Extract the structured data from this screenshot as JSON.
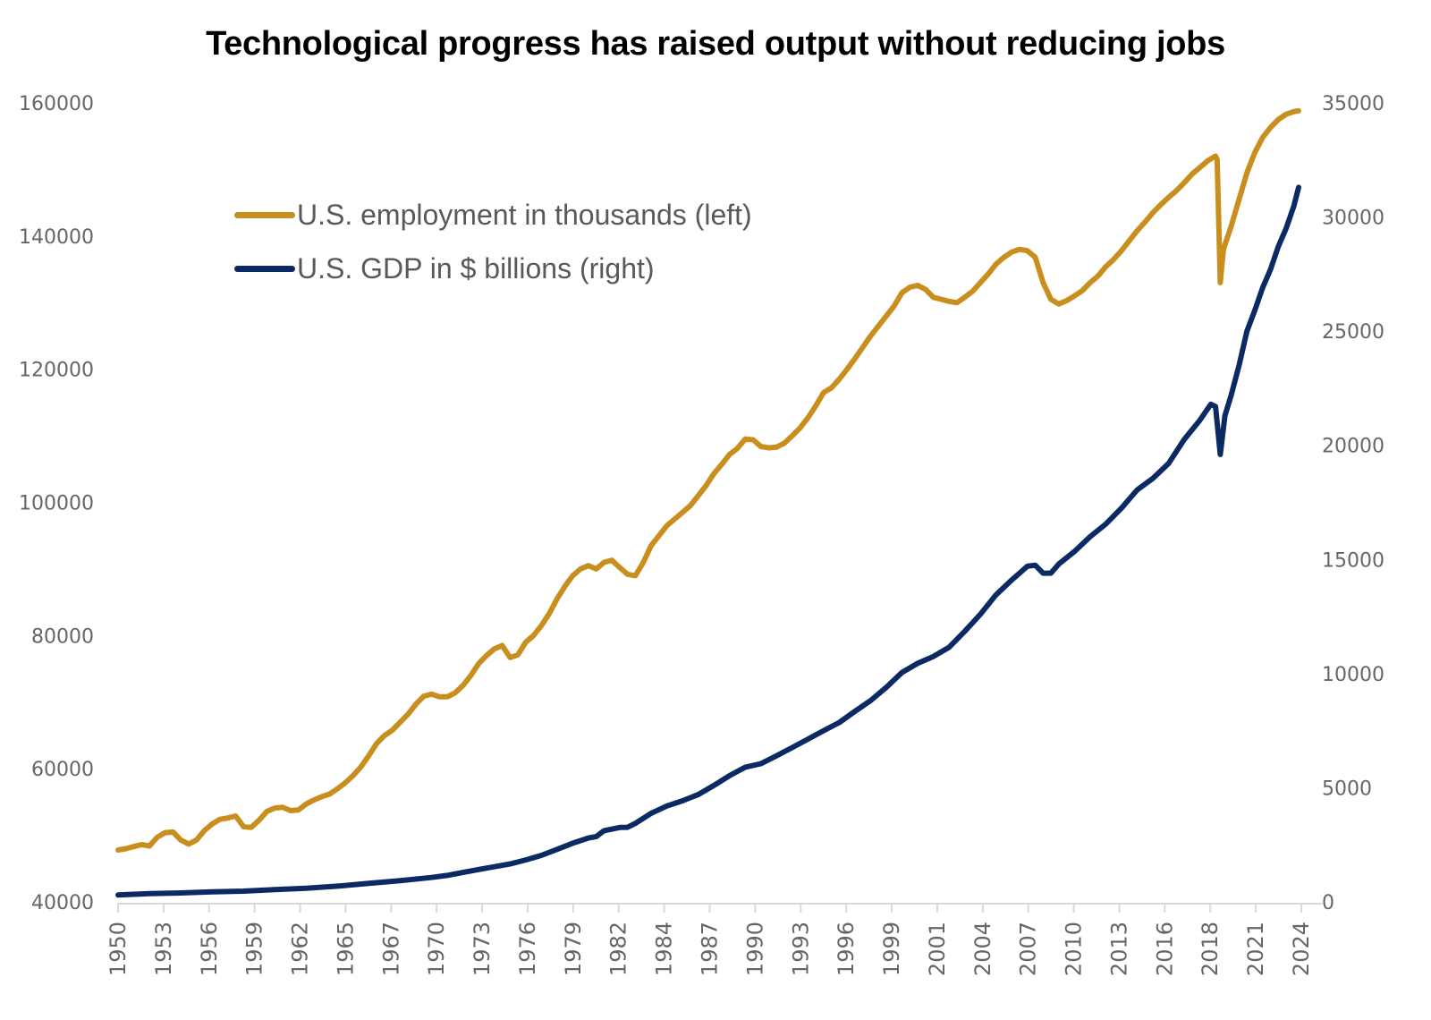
{
  "chart_data": {
    "type": "line",
    "title": "Technological progress has raised output without reducing jobs",
    "xlabel": "",
    "ylabel_left": "",
    "ylabel_right": "",
    "x_tick_labels": [
      "1950",
      "1953",
      "1956",
      "1959",
      "1962",
      "1965",
      "1967",
      "1970",
      "1973",
      "1976",
      "1979",
      "1982",
      "1984",
      "1987",
      "1990",
      "1993",
      "1996",
      "1999",
      "2001",
      "2004",
      "2007",
      "2010",
      "2013",
      "2016",
      "2018",
      "2021",
      "2024"
    ],
    "y_left": {
      "range": [
        40000,
        160000
      ],
      "ticks": [
        "40000",
        "60000",
        "80000",
        "100000",
        "120000",
        "140000",
        "160000"
      ]
    },
    "y_right": {
      "range": [
        0,
        35000
      ],
      "ticks": [
        "0",
        "5000",
        "10000",
        "15000",
        "20000",
        "25000",
        "30000",
        "35000"
      ]
    },
    "grid": false,
    "legend_position": "top-left",
    "series": [
      {
        "name": "U.S. employment in thousands (left)",
        "axis": "left",
        "color": "#C98F1E",
        "points": [
          [
            1950.0,
            47800
          ],
          [
            1950.5,
            48000
          ],
          [
            1951.0,
            48300
          ],
          [
            1951.5,
            48600
          ],
          [
            1952.0,
            48400
          ],
          [
            1952.5,
            49700
          ],
          [
            1953.0,
            50400
          ],
          [
            1953.5,
            50500
          ],
          [
            1954.0,
            49300
          ],
          [
            1954.5,
            48700
          ],
          [
            1955.0,
            49300
          ],
          [
            1955.5,
            50700
          ],
          [
            1956.0,
            51700
          ],
          [
            1956.5,
            52400
          ],
          [
            1957.0,
            52600
          ],
          [
            1957.5,
            52900
          ],
          [
            1958.0,
            51300
          ],
          [
            1958.5,
            51200
          ],
          [
            1959.0,
            52300
          ],
          [
            1959.5,
            53600
          ],
          [
            1960.0,
            54100
          ],
          [
            1960.5,
            54200
          ],
          [
            1961.0,
            53700
          ],
          [
            1961.5,
            53800
          ],
          [
            1962.0,
            54700
          ],
          [
            1962.5,
            55300
          ],
          [
            1963.0,
            55800
          ],
          [
            1963.5,
            56200
          ],
          [
            1964.0,
            57000
          ],
          [
            1964.5,
            57900
          ],
          [
            1965.0,
            59000
          ],
          [
            1965.5,
            60300
          ],
          [
            1966.0,
            62000
          ],
          [
            1966.5,
            63800
          ],
          [
            1967.0,
            65000
          ],
          [
            1967.5,
            65800
          ],
          [
            1968.0,
            67000
          ],
          [
            1968.5,
            68200
          ],
          [
            1969.0,
            69700
          ],
          [
            1969.5,
            70900
          ],
          [
            1970.0,
            71200
          ],
          [
            1970.5,
            70800
          ],
          [
            1971.0,
            70800
          ],
          [
            1971.5,
            71400
          ],
          [
            1972.0,
            72500
          ],
          [
            1972.5,
            74000
          ],
          [
            1973.0,
            75800
          ],
          [
            1973.5,
            77000
          ],
          [
            1974.0,
            78000
          ],
          [
            1974.5,
            78500
          ],
          [
            1975.0,
            76700
          ],
          [
            1975.5,
            77100
          ],
          [
            1976.0,
            79000
          ],
          [
            1976.5,
            80000
          ],
          [
            1977.0,
            81500
          ],
          [
            1977.5,
            83300
          ],
          [
            1978.0,
            85500
          ],
          [
            1978.5,
            87400
          ],
          [
            1979.0,
            89000
          ],
          [
            1979.5,
            90000
          ],
          [
            1980.0,
            90500
          ],
          [
            1980.5,
            90000
          ],
          [
            1981.0,
            91000
          ],
          [
            1981.5,
            91300
          ],
          [
            1982.0,
            90200
          ],
          [
            1982.5,
            89200
          ],
          [
            1983.0,
            89000
          ],
          [
            1983.5,
            91000
          ],
          [
            1984.0,
            93500
          ],
          [
            1984.5,
            95000
          ],
          [
            1985.0,
            96500
          ],
          [
            1985.5,
            97500
          ],
          [
            1986.0,
            98500
          ],
          [
            1986.5,
            99500
          ],
          [
            1987.0,
            101000
          ],
          [
            1987.5,
            102500
          ],
          [
            1988.0,
            104300
          ],
          [
            1988.5,
            105700
          ],
          [
            1989.0,
            107200
          ],
          [
            1989.5,
            108100
          ],
          [
            1990.0,
            109500
          ],
          [
            1990.5,
            109400
          ],
          [
            1991.0,
            108400
          ],
          [
            1991.5,
            108200
          ],
          [
            1992.0,
            108300
          ],
          [
            1992.5,
            108900
          ],
          [
            1993.0,
            110000
          ],
          [
            1993.5,
            111200
          ],
          [
            1994.0,
            112700
          ],
          [
            1994.5,
            114500
          ],
          [
            1995.0,
            116500
          ],
          [
            1995.5,
            117200
          ],
          [
            1996.0,
            118500
          ],
          [
            1996.5,
            120000
          ],
          [
            1997.0,
            121600
          ],
          [
            1997.5,
            123300
          ],
          [
            1998.0,
            125000
          ],
          [
            1998.5,
            126500
          ],
          [
            1999.0,
            128000
          ],
          [
            1999.5,
            129500
          ],
          [
            2000.0,
            131500
          ],
          [
            2000.5,
            132300
          ],
          [
            2001.0,
            132600
          ],
          [
            2001.5,
            132000
          ],
          [
            2002.0,
            130800
          ],
          [
            2002.5,
            130500
          ],
          [
            2003.0,
            130200
          ],
          [
            2003.5,
            130000
          ],
          [
            2004.0,
            130800
          ],
          [
            2004.5,
            131700
          ],
          [
            2005.0,
            133000
          ],
          [
            2005.5,
            134300
          ],
          [
            2006.0,
            135800
          ],
          [
            2006.5,
            136800
          ],
          [
            2007.0,
            137600
          ],
          [
            2007.5,
            138000
          ],
          [
            2008.0,
            137800
          ],
          [
            2008.5,
            136800
          ],
          [
            2009.0,
            133000
          ],
          [
            2009.5,
            130500
          ],
          [
            2010.0,
            129800
          ],
          [
            2010.5,
            130300
          ],
          [
            2011.0,
            131000
          ],
          [
            2011.5,
            131800
          ],
          [
            2012.0,
            133000
          ],
          [
            2012.5,
            134000
          ],
          [
            2013.0,
            135400
          ],
          [
            2013.5,
            136500
          ],
          [
            2014.0,
            137800
          ],
          [
            2014.5,
            139300
          ],
          [
            2015.0,
            140800
          ],
          [
            2015.5,
            142100
          ],
          [
            2016.0,
            143500
          ],
          [
            2016.5,
            144700
          ],
          [
            2017.0,
            145800
          ],
          [
            2017.5,
            146800
          ],
          [
            2018.0,
            148000
          ],
          [
            2018.5,
            149300
          ],
          [
            2019.0,
            150300
          ],
          [
            2019.5,
            151300
          ],
          [
            2020.0,
            152000
          ],
          [
            2020.1,
            151500
          ],
          [
            2020.3,
            133000
          ],
          [
            2020.5,
            138000
          ],
          [
            2021.0,
            141500
          ],
          [
            2021.5,
            145500
          ],
          [
            2022.0,
            149500
          ],
          [
            2022.5,
            152500
          ],
          [
            2023.0,
            154800
          ],
          [
            2023.5,
            156300
          ],
          [
            2024.0,
            157500
          ],
          [
            2024.5,
            158300
          ],
          [
            2025.0,
            158700
          ],
          [
            2025.3,
            158800
          ]
        ]
      },
      {
        "name": "U.S. GDP in $ billions (right)",
        "axis": "right",
        "color": "#0B2A63",
        "points": [
          [
            1950.0,
            300
          ],
          [
            1952.0,
            360
          ],
          [
            1954.0,
            390
          ],
          [
            1956.0,
            440
          ],
          [
            1958.0,
            470
          ],
          [
            1960.0,
            540
          ],
          [
            1962.0,
            600
          ],
          [
            1964.0,
            690
          ],
          [
            1966.0,
            810
          ],
          [
            1968.0,
            930
          ],
          [
            1970.0,
            1070
          ],
          [
            1971.0,
            1160
          ],
          [
            1972.0,
            1290
          ],
          [
            1973.0,
            1420
          ],
          [
            1974.0,
            1540
          ],
          [
            1975.0,
            1660
          ],
          [
            1976.0,
            1840
          ],
          [
            1977.0,
            2040
          ],
          [
            1978.0,
            2300
          ],
          [
            1979.0,
            2570
          ],
          [
            1980.0,
            2800
          ],
          [
            1980.5,
            2860
          ],
          [
            1981.0,
            3120
          ],
          [
            1982.0,
            3260
          ],
          [
            1982.5,
            3270
          ],
          [
            1983.0,
            3440
          ],
          [
            1984.0,
            3880
          ],
          [
            1985.0,
            4200
          ],
          [
            1986.0,
            4430
          ],
          [
            1987.0,
            4700
          ],
          [
            1988.0,
            5100
          ],
          [
            1989.0,
            5530
          ],
          [
            1990.0,
            5900
          ],
          [
            1991.0,
            6050
          ],
          [
            1992.0,
            6400
          ],
          [
            1993.0,
            6760
          ],
          [
            1994.0,
            7130
          ],
          [
            1995.0,
            7500
          ],
          [
            1996.0,
            7860
          ],
          [
            1997.0,
            8350
          ],
          [
            1998.0,
            8820
          ],
          [
            1999.0,
            9400
          ],
          [
            2000.0,
            10050
          ],
          [
            2001.0,
            10450
          ],
          [
            2002.0,
            10750
          ],
          [
            2003.0,
            11150
          ],
          [
            2004.0,
            11850
          ],
          [
            2005.0,
            12600
          ],
          [
            2006.0,
            13450
          ],
          [
            2007.0,
            14100
          ],
          [
            2008.0,
            14700
          ],
          [
            2008.5,
            14750
          ],
          [
            2009.0,
            14400
          ],
          [
            2009.5,
            14400
          ],
          [
            2010.0,
            14800
          ],
          [
            2011.0,
            15350
          ],
          [
            2012.0,
            16000
          ],
          [
            2013.0,
            16550
          ],
          [
            2014.0,
            17250
          ],
          [
            2015.0,
            18050
          ],
          [
            2016.0,
            18550
          ],
          [
            2017.0,
            19200
          ],
          [
            2018.0,
            20250
          ],
          [
            2019.0,
            21100
          ],
          [
            2019.7,
            21800
          ],
          [
            2020.0,
            21700
          ],
          [
            2020.3,
            19600
          ],
          [
            2020.6,
            21300
          ],
          [
            2021.0,
            22200
          ],
          [
            2021.5,
            23500
          ],
          [
            2022.0,
            25000
          ],
          [
            2022.5,
            25900
          ],
          [
            2023.0,
            26900
          ],
          [
            2023.5,
            27700
          ],
          [
            2024.0,
            28700
          ],
          [
            2024.5,
            29500
          ],
          [
            2025.0,
            30500
          ],
          [
            2025.3,
            31300
          ]
        ]
      }
    ]
  }
}
